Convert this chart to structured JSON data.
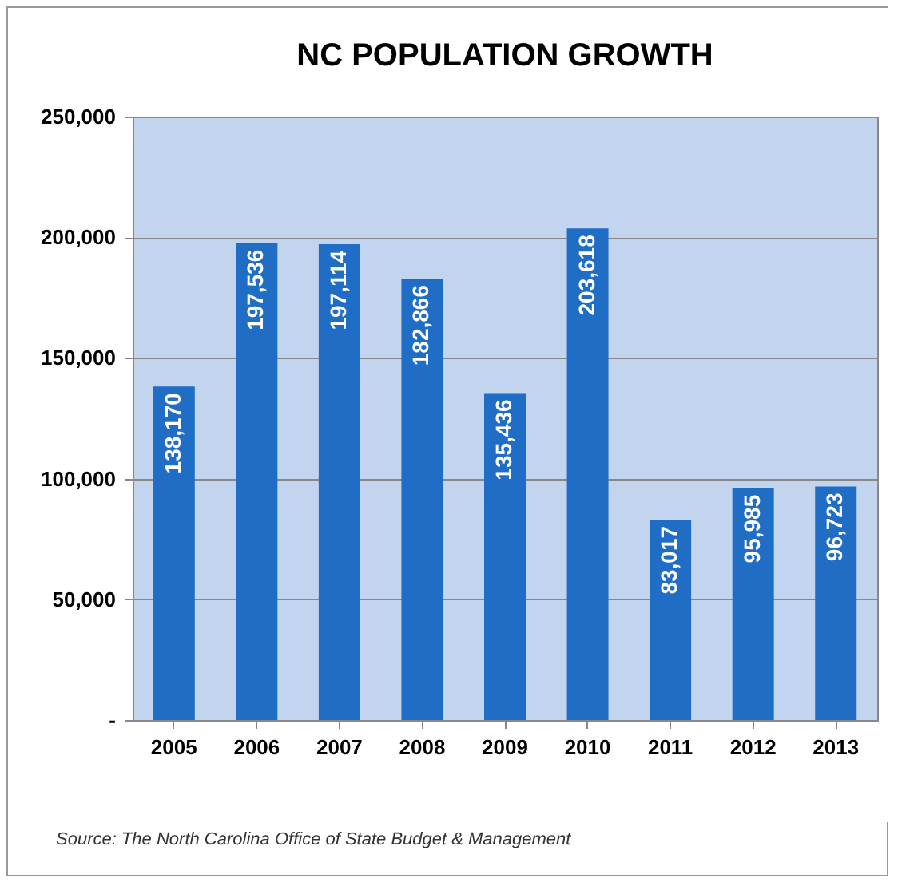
{
  "chart_data": {
    "type": "bar",
    "title": "NC POPULATION GROWTH",
    "categories": [
      "2005",
      "2006",
      "2007",
      "2008",
      "2009",
      "2010",
      "2011",
      "2012",
      "2013"
    ],
    "values": [
      138170,
      197536,
      197114,
      182866,
      135436,
      203618,
      83017,
      95985,
      96723
    ],
    "value_labels": [
      "138,170",
      "197,536",
      "197,114",
      "182,866",
      "135,436",
      "203,618",
      "83,017",
      "95,985",
      "96,723"
    ],
    "color": "#1f6dc4",
    "grid": "y",
    "ylim": [
      0,
      250000
    ],
    "yticks": [
      {
        "value": 0,
        "label": "-"
      },
      {
        "value": 50000,
        "label": "50,000"
      },
      {
        "value": 100000,
        "label": "100,000"
      },
      {
        "value": 150000,
        "label": "150,000"
      },
      {
        "value": 200000,
        "label": "200,000"
      },
      {
        "value": 250000,
        "label": "250,000"
      }
    ],
    "annotations": [
      "Source: The North Carolina Office of State Budget & Management"
    ]
  }
}
